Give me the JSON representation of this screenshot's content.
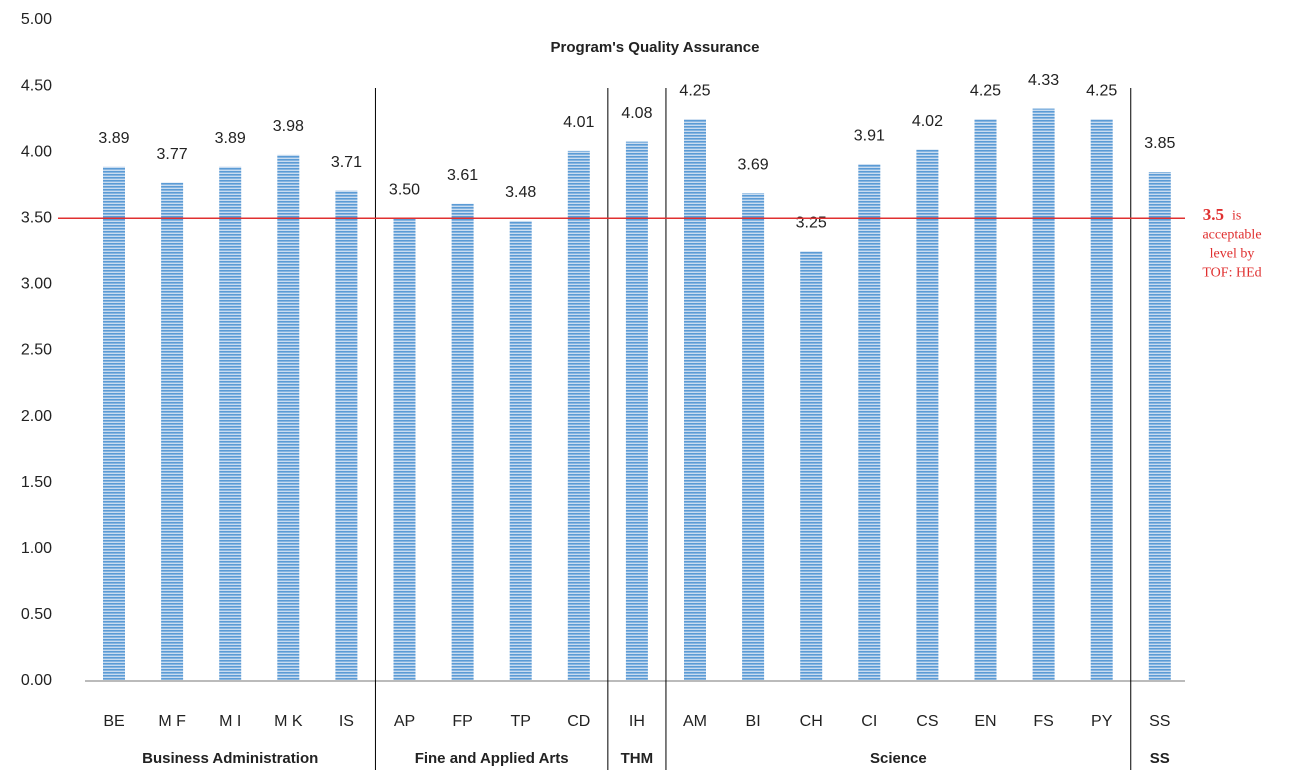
{
  "chart_data": {
    "type": "bar",
    "title": "Program's Quality Assurance",
    "categories": [
      "BE",
      "M F",
      "M I",
      "M K",
      "IS",
      "AP",
      "FP",
      "TP",
      "CD",
      "IH",
      "AM",
      "BI",
      "CH",
      "CI",
      "CS",
      "EN",
      "FS",
      "PY",
      "SS"
    ],
    "values": [
      3.89,
      3.77,
      3.89,
      3.98,
      3.71,
      3.5,
      3.61,
      3.48,
      4.01,
      4.08,
      4.25,
      3.69,
      3.25,
      3.91,
      4.02,
      4.25,
      4.33,
      4.25,
      3.85
    ],
    "value_labels": [
      "3.89",
      "3.77",
      "3.89",
      "3.98",
      "3.71",
      "3.50",
      "3.61",
      "3.48",
      "4.01",
      "4.08",
      "4.25",
      "3.69",
      "3.25",
      "3.91",
      "4.02",
      "4.25",
      "4.33",
      "4.25",
      "3.85"
    ],
    "color": "#5b9bd5",
    "ylim": [
      0,
      5
    ],
    "yticks": [
      {
        "value": 0,
        "label": "0.00"
      },
      {
        "value": 0.5,
        "label": "0.50"
      },
      {
        "value": 1,
        "label": "1.00"
      },
      {
        "value": 1.5,
        "label": "1.50"
      },
      {
        "value": 2,
        "label": "2.00"
      },
      {
        "value": 2.5,
        "label": "2.50"
      },
      {
        "value": 3,
        "label": "3.00"
      },
      {
        "value": 3.5,
        "label": "3.50"
      },
      {
        "value": 4,
        "label": "4.00"
      },
      {
        "value": 4.5,
        "label": "4.50"
      },
      {
        "value": 5,
        "label": "5.00"
      }
    ],
    "groups": [
      {
        "name": "Business Administration",
        "size": 5
      },
      {
        "name": "Fine and Applied Arts",
        "size": 4
      },
      {
        "name": "THM",
        "size": 1
      },
      {
        "name": "Science",
        "size": 8
      },
      {
        "name": "SS",
        "size": 1
      }
    ],
    "reference_line": {
      "value": 3.5,
      "color": "#e03030",
      "text": [
        "is",
        "acceptable",
        "level by",
        "TOF: HEd"
      ]
    }
  }
}
